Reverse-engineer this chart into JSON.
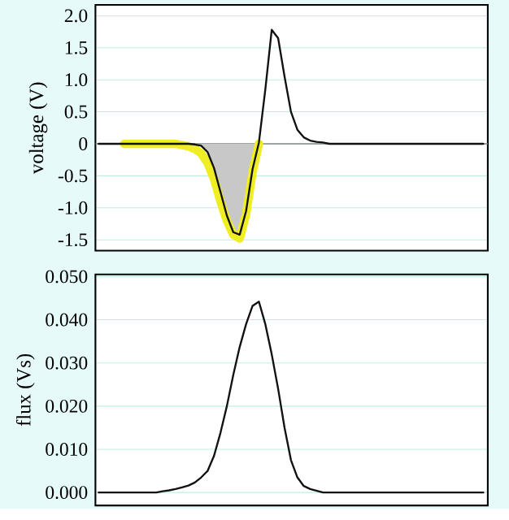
{
  "chart_data": [
    {
      "type": "line",
      "ylabel": "voltage (V)",
      "tick_labels": "y",
      "grid": "y",
      "categories": [
        null,
        null,
        null,
        null,
        null,
        null,
        null,
        null,
        null,
        null,
        null,
        null,
        null,
        null,
        null,
        null,
        null,
        null,
        null,
        null,
        null,
        null,
        null,
        null,
        null,
        null,
        null,
        null,
        null,
        null,
        null,
        null,
        null,
        null,
        null,
        null,
        null,
        null,
        null,
        null,
        null,
        null,
        null,
        null,
        null,
        null,
        null,
        null,
        null,
        null,
        null,
        null,
        null,
        null,
        null,
        null,
        null,
        null,
        null,
        null,
        null
      ],
      "ylim": [
        -1.67,
        2.17
      ],
      "yticks": [
        -1.5,
        {
          "value": -1,
          "label": "-1.0"
        },
        -0.5,
        0,
        0.5,
        {
          "value": 1,
          "label": "1.0"
        },
        1.5,
        {
          "value": 2,
          "label": "2.0"
        }
      ],
      "ref_lines": [
        {
          "axis": "y",
          "value": 0,
          "color": "#888888"
        }
      ],
      "series": [
        {
          "type": "area",
          "color": "#c8c8c8",
          "values": [
            null,
            null,
            null,
            null,
            null,
            null,
            null,
            null,
            null,
            null,
            null,
            null,
            null,
            null,
            null,
            null,
            -0.03,
            -0.13,
            -0.38,
            -0.75,
            -1.12,
            -1.38,
            -1.42,
            -1.05,
            -0.4,
            0.02,
            null,
            null,
            null,
            null,
            null,
            null,
            null,
            null,
            null,
            null,
            null,
            null,
            null,
            null,
            null,
            null,
            null,
            null,
            null,
            null,
            null,
            null,
            null,
            null,
            null,
            null,
            null,
            null,
            null,
            null,
            null,
            null,
            null,
            null,
            null
          ]
        },
        {
          "color": "#eeee22",
          "values": [
            null,
            null,
            null,
            null,
            0,
            0,
            0,
            0,
            0,
            0,
            0,
            0,
            0,
            -0.02,
            -0.04,
            -0.08,
            -0.15,
            -0.3,
            -0.55,
            -0.9,
            -1.2,
            -1.42,
            -1.48,
            -1.1,
            -0.45,
            0,
            null,
            null,
            null,
            null,
            null,
            null,
            null,
            null,
            null,
            null,
            null,
            null,
            null,
            null,
            null,
            null,
            null,
            null,
            null,
            null,
            null,
            null,
            null,
            null,
            null,
            null,
            null,
            null,
            null,
            null,
            null,
            null,
            null,
            null,
            null
          ]
        },
        {
          "color": "#111111",
          "values": [
            0,
            0,
            0,
            0,
            0,
            0,
            0,
            0,
            0,
            0,
            0,
            0,
            0,
            0,
            0,
            -0.01,
            -0.03,
            -0.13,
            -0.38,
            -0.75,
            -1.12,
            -1.38,
            -1.42,
            -1.05,
            -0.4,
            0.02,
            0.85,
            1.78,
            1.65,
            1.05,
            0.5,
            0.22,
            0.1,
            0.05,
            0.03,
            0.02,
            0,
            0,
            0,
            0,
            0,
            0,
            0,
            0,
            0,
            0,
            0,
            0,
            0,
            0,
            0,
            0,
            0,
            0,
            0,
            0,
            0,
            0,
            0,
            0,
            0
          ]
        }
      ]
    },
    {
      "type": "line",
      "ylabel": "flux (Vs)",
      "tick_labels": "y",
      "grid": "y",
      "categories": [
        null,
        null,
        null,
        null,
        null,
        null,
        null,
        null,
        null,
        null,
        null,
        null,
        null,
        null,
        null,
        null,
        null,
        null,
        null,
        null,
        null,
        null,
        null,
        null,
        null,
        null,
        null,
        null,
        null,
        null,
        null,
        null,
        null,
        null,
        null,
        null,
        null,
        null,
        null,
        null,
        null,
        null,
        null,
        null,
        null,
        null,
        null,
        null,
        null,
        null,
        null,
        null,
        null,
        null,
        null,
        null,
        null,
        null,
        null,
        null,
        null
      ],
      "ylim": [
        -0.003,
        0.0505
      ],
      "yticks": [
        {
          "value": 0,
          "label": "0.000"
        },
        {
          "value": 0.01,
          "label": "0.010"
        },
        {
          "value": 0.02,
          "label": "0.020"
        },
        {
          "value": 0.03,
          "label": "0.030"
        },
        {
          "value": 0.04,
          "label": "0.040"
        },
        {
          "value": 0.05,
          "label": "0.050"
        }
      ],
      "series": [
        {
          "color": "#111111",
          "values": [
            0,
            0,
            0,
            0,
            0,
            0,
            0,
            0,
            0,
            0,
            0.0003,
            0.0005,
            0.0008,
            0.0012,
            0.0016,
            0.0023,
            0.0035,
            0.005,
            0.0085,
            0.0138,
            0.02,
            0.0272,
            0.0337,
            0.039,
            0.0432,
            0.0442,
            0.039,
            0.032,
            0.024,
            0.015,
            0.0075,
            0.0035,
            0.0015,
            0.0008,
            0.0004,
            0,
            0,
            0,
            0,
            0,
            0,
            0,
            0,
            0,
            0,
            0,
            0,
            0,
            0,
            0,
            0,
            0,
            0,
            0,
            0,
            0,
            0,
            0,
            0,
            0,
            0
          ]
        }
      ]
    }
  ]
}
